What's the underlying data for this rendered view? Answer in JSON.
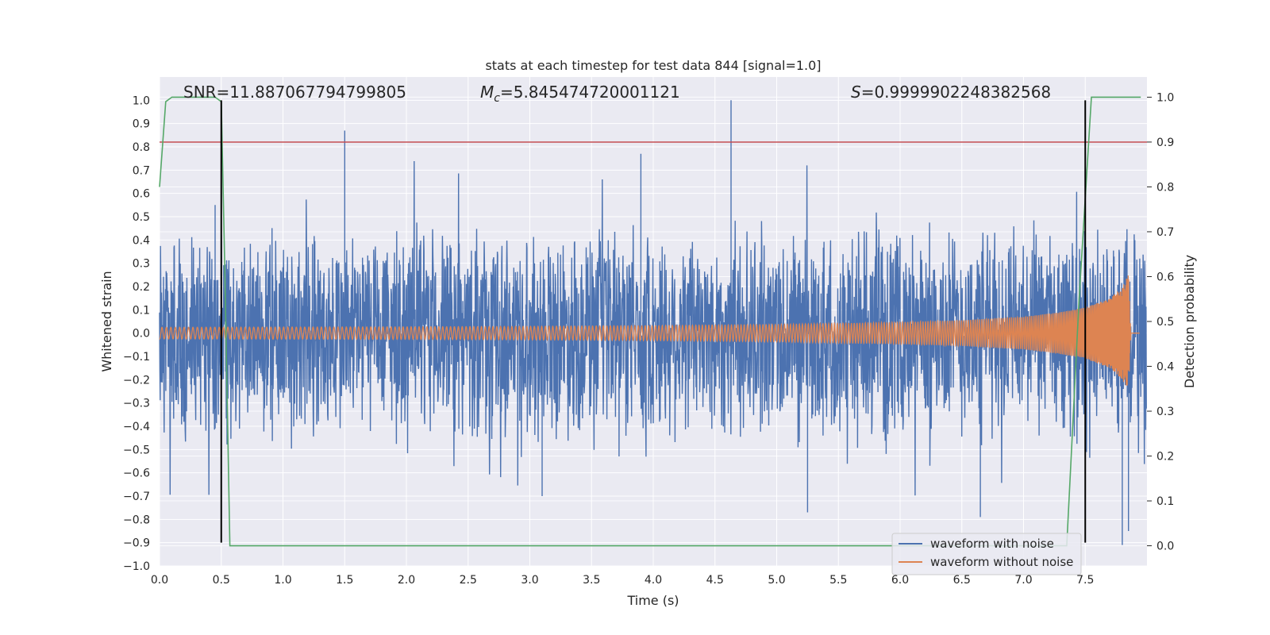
{
  "chart_data": {
    "type": "line",
    "title": "stats at each timestep for test data 844 [signal=1.0]",
    "xlabel": "Time (s)",
    "ylabel_left": "Whitened strain",
    "ylabel_right": "Detection probability",
    "xlim": [
      0.0,
      8.0
    ],
    "ylim_left": [
      -1.0,
      1.1
    ],
    "ylim_right": [
      -0.045,
      1.045
    ],
    "x_ticks": [
      "0.0",
      "0.5",
      "1.0",
      "1.5",
      "2.0",
      "2.5",
      "3.0",
      "3.5",
      "4.0",
      "4.5",
      "5.0",
      "5.5",
      "6.0",
      "6.5",
      "7.0",
      "7.5"
    ],
    "y_ticks_left": [
      "1.0",
      "0.9",
      "0.8",
      "0.7",
      "0.6",
      "0.5",
      "0.4",
      "0.3",
      "0.2",
      "0.1",
      "0.0",
      "−0.1",
      "−0.2",
      "−0.3",
      "−0.4",
      "−0.5",
      "−0.6",
      "−0.7",
      "−0.8",
      "−0.9",
      "−1.0"
    ],
    "y_ticks_right": [
      "1.0",
      "0.9",
      "0.8",
      "0.7",
      "0.6",
      "0.5",
      "0.4",
      "0.3",
      "0.2",
      "0.1",
      "0.0"
    ],
    "grid": true,
    "legend_position": "lower-right",
    "annotations": {
      "snr": "SNR=11.887067794799805",
      "mc_symbol": "M",
      "mc_sub": "c",
      "mc_value": "=5.845474720001121",
      "s_symbol": "S",
      "s_value": "=0.9999902248382568"
    },
    "series": [
      {
        "name": "waveform with noise",
        "color": "#4c72b0",
        "axis": "left",
        "description_points": {
          "t": [
            0.0,
            8.0
          ],
          "typical_band": [
            -0.35,
            0.35
          ],
          "peaks": [
            [
              0.45,
              0.55
            ],
            [
              1.5,
              0.87
            ],
            [
              3.9,
              0.77
            ],
            [
              4.63,
              1.0
            ],
            [
              7.5,
              0.65
            ]
          ],
          "troughs": [
            [
              0.5,
              -0.6
            ],
            [
              3.1,
              -0.7
            ],
            [
              5.25,
              -0.77
            ],
            [
              6.65,
              -0.79
            ],
            [
              7.8,
              -0.91
            ],
            [
              7.85,
              -0.85
            ]
          ]
        }
      },
      {
        "name": "waveform without noise",
        "color": "#dd8452",
        "axis": "left",
        "t": [
          0.0,
          1.0,
          2.0,
          3.0,
          4.0,
          5.0,
          6.0,
          6.5,
          7.0,
          7.3,
          7.5,
          7.7,
          7.8,
          7.85,
          7.87
        ],
        "envelope": [
          0.025,
          0.026,
          0.027,
          0.029,
          0.032,
          0.037,
          0.047,
          0.055,
          0.07,
          0.09,
          0.11,
          0.15,
          0.2,
          0.25,
          0.0
        ]
      },
      {
        "name": "detection probability",
        "color": "#55a868",
        "axis": "right",
        "t": [
          0.0,
          0.05,
          0.1,
          0.45,
          0.5,
          0.53,
          0.57,
          7.35,
          7.45,
          7.55,
          7.95
        ],
        "p": [
          0.8,
          0.99,
          1.0,
          1.0,
          0.99,
          0.6,
          0.0,
          0.0,
          0.55,
          1.0,
          1.0
        ]
      }
    ],
    "threshold_right": 0.9,
    "threshold_color": "#c44e52",
    "vertical_lines_x": [
      0.5,
      7.5
    ],
    "vertical_line_range_left": [
      -0.9,
      1.0
    ]
  }
}
